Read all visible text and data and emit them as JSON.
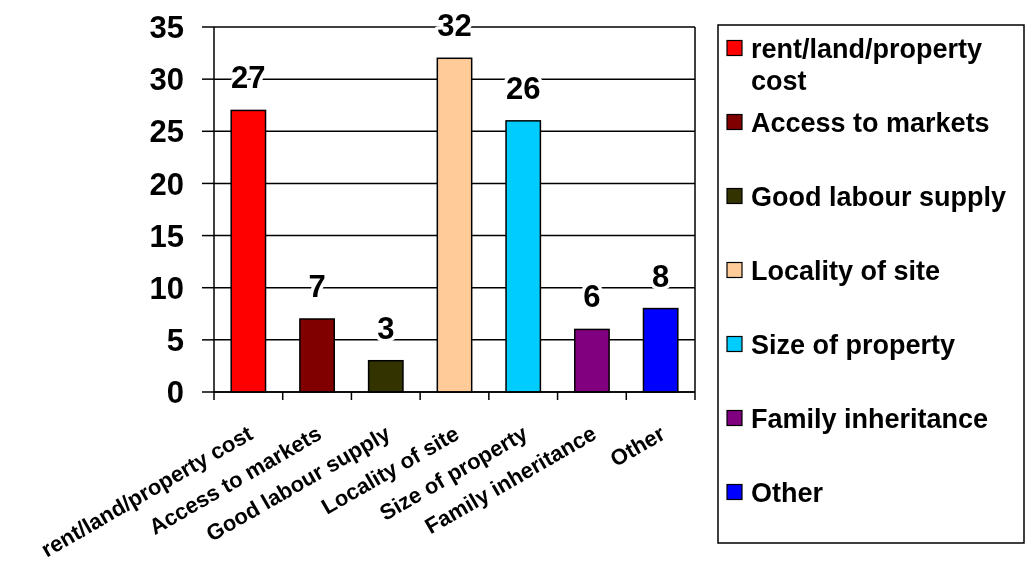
{
  "chart_data": {
    "type": "bar",
    "categories": [
      "rent/land/property cost",
      "Access to markets",
      "Good labour supply",
      "Locality of site",
      "Size of property",
      "Family inheritance",
      "Other"
    ],
    "stacked": true,
    "series": [
      {
        "name": "rent/land/property cost",
        "color": "#ff0000",
        "values": [
          27,
          null,
          null,
          null,
          null,
          null,
          null
        ]
      },
      {
        "name": "Access to markets",
        "color": "#800000",
        "values": [
          null,
          7,
          null,
          null,
          null,
          null,
          null
        ]
      },
      {
        "name": "Good labour supply",
        "color": "#333300",
        "values": [
          null,
          null,
          3,
          null,
          null,
          null,
          null
        ]
      },
      {
        "name": "Locality of site",
        "color": "#ffcc99",
        "values": [
          null,
          null,
          null,
          32,
          null,
          null,
          null
        ]
      },
      {
        "name": "Size of property",
        "color": "#00ccff",
        "values": [
          null,
          null,
          null,
          null,
          26,
          null,
          null
        ]
      },
      {
        "name": "Family inheritance",
        "color": "#800080",
        "values": [
          null,
          null,
          null,
          null,
          null,
          6,
          null
        ]
      },
      {
        "name": "Other",
        "color": "#0000ff",
        "values": [
          null,
          null,
          null,
          null,
          null,
          null,
          8
        ]
      }
    ],
    "ylim": [
      0,
      35
    ],
    "yticks": [
      0,
      5,
      10,
      15,
      20,
      25,
      30,
      35
    ],
    "grid": "y",
    "legend": "right",
    "data_labels": true
  }
}
